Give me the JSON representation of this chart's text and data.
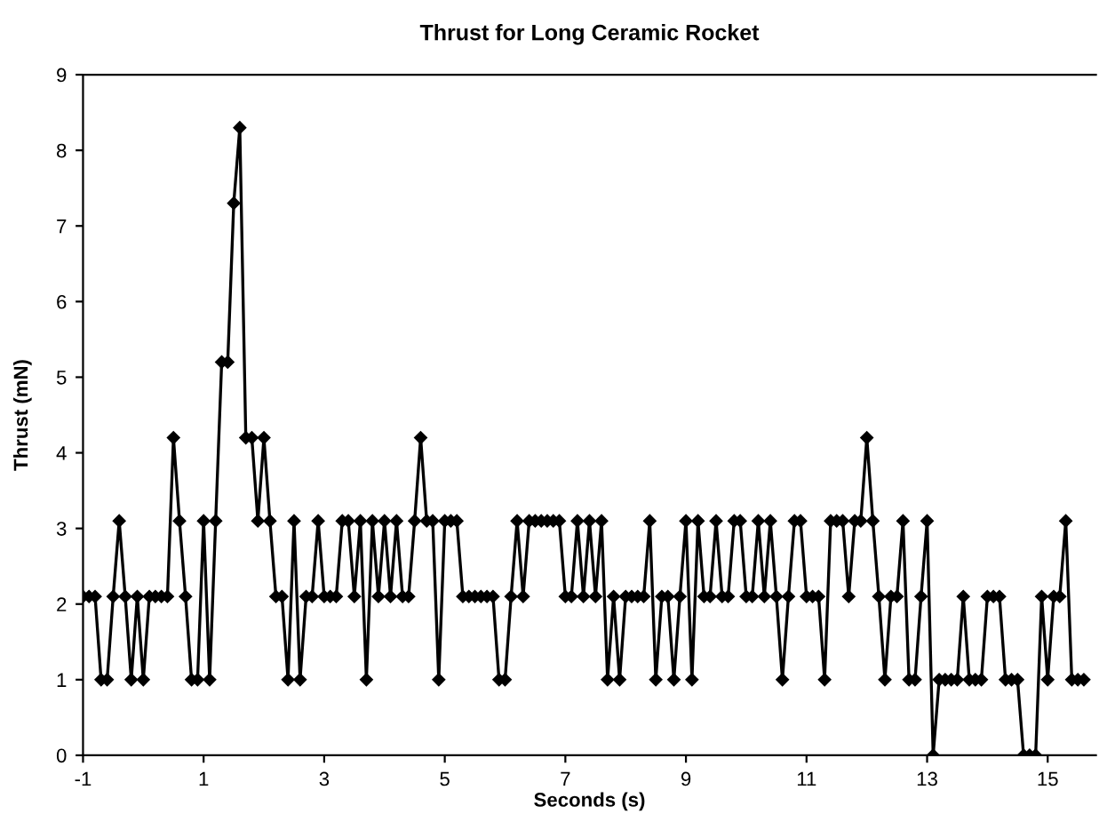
{
  "chart_data": {
    "type": "line",
    "title": "Thrust for Long Ceramic Rocket",
    "xlabel": "Seconds (s)",
    "ylabel": "Thrust (mN)",
    "xlim": [
      -1,
      15.8
    ],
    "xticks": [
      -1,
      1,
      3,
      5,
      7,
      9,
      11,
      13,
      15
    ],
    "ylim": [
      0,
      9
    ],
    "yticks": [
      0,
      1,
      2,
      3,
      4,
      5,
      6,
      7,
      8,
      9
    ],
    "grid": false,
    "legend": false,
    "marker": "diamond",
    "line_style": "solid",
    "series": [
      {
        "color": "#000000",
        "x": [
          -1.0,
          -0.9,
          -0.8,
          -0.7,
          -0.6,
          -0.5,
          -0.4,
          -0.3,
          -0.2,
          -0.1,
          0.0,
          0.1,
          0.2,
          0.3,
          0.4,
          0.5,
          0.6,
          0.7,
          0.8,
          0.9,
          1.0,
          1.1,
          1.2,
          1.3,
          1.4,
          1.5,
          1.6,
          1.7,
          1.8,
          1.9,
          2.0,
          2.1,
          2.2,
          2.3,
          2.4,
          2.5,
          2.6,
          2.7,
          2.8,
          2.9,
          3.0,
          3.1,
          3.2,
          3.3,
          3.4,
          3.5,
          3.6,
          3.7,
          3.8,
          3.9,
          4.0,
          4.1,
          4.2,
          4.3,
          4.4,
          4.5,
          4.6,
          4.7,
          4.8,
          4.9,
          5.0,
          5.1,
          5.2,
          5.3,
          5.4,
          5.5,
          5.6,
          5.7,
          5.8,
          5.9,
          6.0,
          6.1,
          6.2,
          6.3,
          6.4,
          6.5,
          6.6,
          6.7,
          6.8,
          6.9,
          7.0,
          7.1,
          7.2,
          7.3,
          7.4,
          7.5,
          7.6,
          7.7,
          7.8,
          7.9,
          8.0,
          8.1,
          8.2,
          8.3,
          8.4,
          8.5,
          8.6,
          8.7,
          8.8,
          8.9,
          9.0,
          9.1,
          9.2,
          9.3,
          9.4,
          9.5,
          9.6,
          9.7,
          9.8,
          9.9,
          10.0,
          10.1,
          10.2,
          10.3,
          10.4,
          10.5,
          10.6,
          10.7,
          10.8,
          10.9,
          11.0,
          11.1,
          11.2,
          11.3,
          11.4,
          11.5,
          11.6,
          11.7,
          11.8,
          11.9,
          12.0,
          12.1,
          12.2,
          12.3,
          12.4,
          12.5,
          12.6,
          12.7,
          12.8,
          12.9,
          13.0,
          13.1,
          13.2,
          13.3,
          13.4,
          13.5,
          13.6,
          13.7,
          13.8,
          13.9,
          14.0,
          14.1,
          14.2,
          14.3,
          14.4,
          14.5,
          14.6,
          14.7,
          14.8,
          14.9,
          15.0,
          15.1,
          15.2,
          15.3,
          15.4,
          15.5,
          15.6
        ],
        "values": [
          2.1,
          2.1,
          2.1,
          1.0,
          1.0,
          2.1,
          3.1,
          2.1,
          1.0,
          2.1,
          1.0,
          2.1,
          2.1,
          2.1,
          2.1,
          4.2,
          3.1,
          2.1,
          1.0,
          1.0,
          3.1,
          1.0,
          3.1,
          5.2,
          5.2,
          7.3,
          8.3,
          4.2,
          4.2,
          3.1,
          4.2,
          3.1,
          2.1,
          2.1,
          1.0,
          3.1,
          1.0,
          2.1,
          2.1,
          3.1,
          2.1,
          2.1,
          2.1,
          3.1,
          3.1,
          2.1,
          3.1,
          1.0,
          3.1,
          2.1,
          3.1,
          2.1,
          3.1,
          2.1,
          2.1,
          3.1,
          4.2,
          3.1,
          3.1,
          1.0,
          3.1,
          3.1,
          3.1,
          2.1,
          2.1,
          2.1,
          2.1,
          2.1,
          2.1,
          1.0,
          1.0,
          2.1,
          3.1,
          2.1,
          3.1,
          3.1,
          3.1,
          3.1,
          3.1,
          3.1,
          2.1,
          2.1,
          3.1,
          2.1,
          3.1,
          2.1,
          3.1,
          1.0,
          2.1,
          1.0,
          2.1,
          2.1,
          2.1,
          2.1,
          3.1,
          1.0,
          2.1,
          2.1,
          1.0,
          2.1,
          3.1,
          1.0,
          3.1,
          2.1,
          2.1,
          3.1,
          2.1,
          2.1,
          3.1,
          3.1,
          2.1,
          2.1,
          3.1,
          2.1,
          3.1,
          2.1,
          1.0,
          2.1,
          3.1,
          3.1,
          2.1,
          2.1,
          2.1,
          1.0,
          3.1,
          3.1,
          3.1,
          2.1,
          3.1,
          3.1,
          4.2,
          3.1,
          2.1,
          1.0,
          2.1,
          2.1,
          3.1,
          1.0,
          1.0,
          2.1,
          3.1,
          0.0,
          1.0,
          1.0,
          1.0,
          1.0,
          2.1,
          1.0,
          1.0,
          1.0,
          2.1,
          2.1,
          2.1,
          1.0,
          1.0,
          1.0,
          0.0,
          0.0,
          0.0,
          2.1,
          1.0,
          2.1,
          2.1,
          3.1,
          1.0,
          1.0,
          1.0
        ]
      }
    ]
  }
}
